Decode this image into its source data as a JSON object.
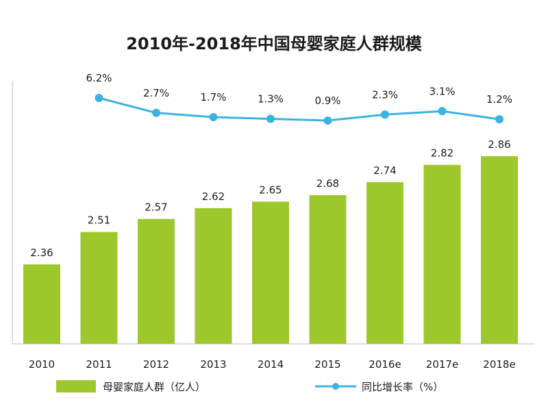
{
  "chart_data": {
    "type": "bar",
    "title": "2010年-2018年中国母婴家庭人群规模",
    "categories": [
      "2010",
      "2011",
      "2012",
      "2013",
      "2014",
      "2015",
      "2016e",
      "2017e",
      "2018e"
    ],
    "series": [
      {
        "name": "母婴家庭人群（亿人）",
        "type": "bar",
        "values": [
          2.36,
          2.51,
          2.57,
          2.62,
          2.65,
          2.68,
          2.74,
          2.82,
          2.86
        ],
        "labels": [
          "2.36",
          "2.51",
          "2.57",
          "2.62",
          "2.65",
          "2.68",
          "2.74",
          "2.82",
          "2.86"
        ],
        "color": "#9dc82c"
      },
      {
        "name": "同比增长率（%）",
        "type": "line",
        "values": [
          null,
          6.2,
          2.7,
          1.7,
          1.3,
          0.9,
          2.3,
          3.1,
          1.2
        ],
        "labels": [
          "",
          "6.2%",
          "2.7%",
          "1.7%",
          "1.3%",
          "0.9%",
          "2.3%",
          "3.1%",
          "1.2%"
        ],
        "color": "#3cb2e3"
      }
    ],
    "legend_position": "bottom",
    "grid": false
  }
}
